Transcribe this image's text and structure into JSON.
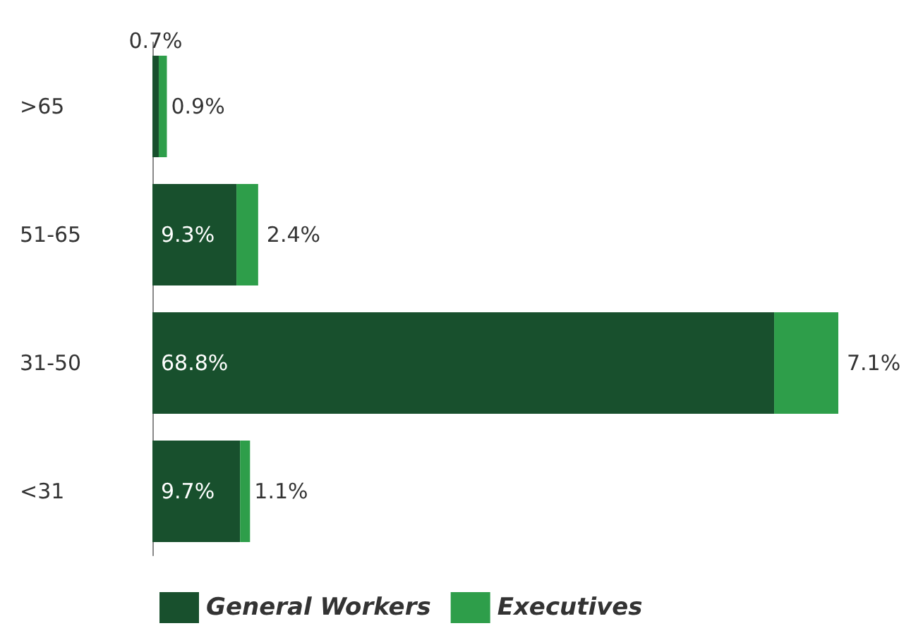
{
  "chart_data": {
    "type": "bar",
    "orientation": "horizontal",
    "stacked": true,
    "categories": [
      ">65",
      "51-65",
      "31-50",
      "<31"
    ],
    "series": [
      {
        "name": "General Workers",
        "color": "#18502d",
        "values": [
          0.7,
          9.3,
          68.8,
          9.7
        ],
        "value_labels": [
          "0.7%",
          "9.3%",
          "68.8%",
          "9.7%"
        ]
      },
      {
        "name": "Executives",
        "color": "#2e9e4a",
        "values": [
          0.9,
          2.4,
          7.1,
          1.1
        ],
        "value_labels": [
          "0.9%",
          "2.4%",
          "7.1%",
          "1.1%"
        ]
      }
    ],
    "tick_labels": "y",
    "legend": "bottom"
  }
}
